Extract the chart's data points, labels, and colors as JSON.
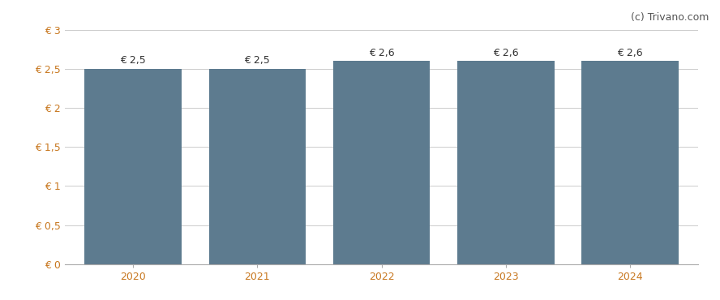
{
  "categories": [
    "2020",
    "2021",
    "2022",
    "2023",
    "2024"
  ],
  "values": [
    2.5,
    2.5,
    2.6,
    2.6,
    2.6
  ],
  "bar_labels": [
    "€ 2,5",
    "€ 2,5",
    "€ 2,6",
    "€ 2,6",
    "€ 2,6"
  ],
  "bar_color": "#5d7b8f",
  "ylim": [
    0,
    3
  ],
  "yticks": [
    0,
    0.5,
    1.0,
    1.5,
    2.0,
    2.5,
    3.0
  ],
  "ytick_labels": [
    "€ 0",
    "€ 0,5",
    "€ 1",
    "€ 1,5",
    "€ 2",
    "€ 2,5",
    "€ 3"
  ],
  "background_color": "#ffffff",
  "grid_color": "#cccccc",
  "watermark": "(c) Trivano.com",
  "bar_width": 0.78,
  "label_fontsize": 9,
  "tick_fontsize": 9,
  "watermark_fontsize": 9,
  "tick_color": "#c87820",
  "label_color": "#333333"
}
